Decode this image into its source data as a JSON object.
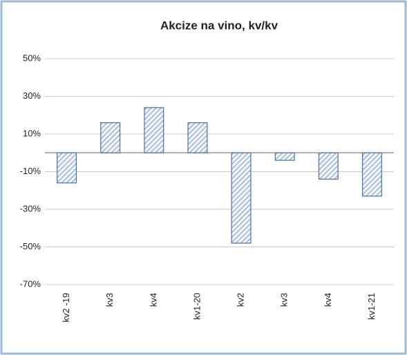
{
  "chart_data": {
    "type": "bar",
    "title": "Akcize na vino, kv/kv",
    "categories": [
      "kv2 -19",
      "kv3",
      "kv4",
      "kv1-20",
      "kv2",
      "kv3",
      "kv4",
      "kv1-21"
    ],
    "values": [
      -16,
      16,
      24,
      16,
      -48,
      -4,
      -14,
      -23
    ],
    "color": "#4a6fa5",
    "ylim": [
      -70,
      50
    ],
    "yticks": [
      {
        "value": -70,
        "label": "-70%"
      },
      {
        "value": -50,
        "label": "-50%"
      },
      {
        "value": -30,
        "label": "-30%"
      },
      {
        "value": -10,
        "label": "-10%"
      },
      {
        "value": 10,
        "label": "10%"
      },
      {
        "value": 30,
        "label": "30%"
      },
      {
        "value": 50,
        "label": "50%"
      }
    ],
    "grid": true
  }
}
